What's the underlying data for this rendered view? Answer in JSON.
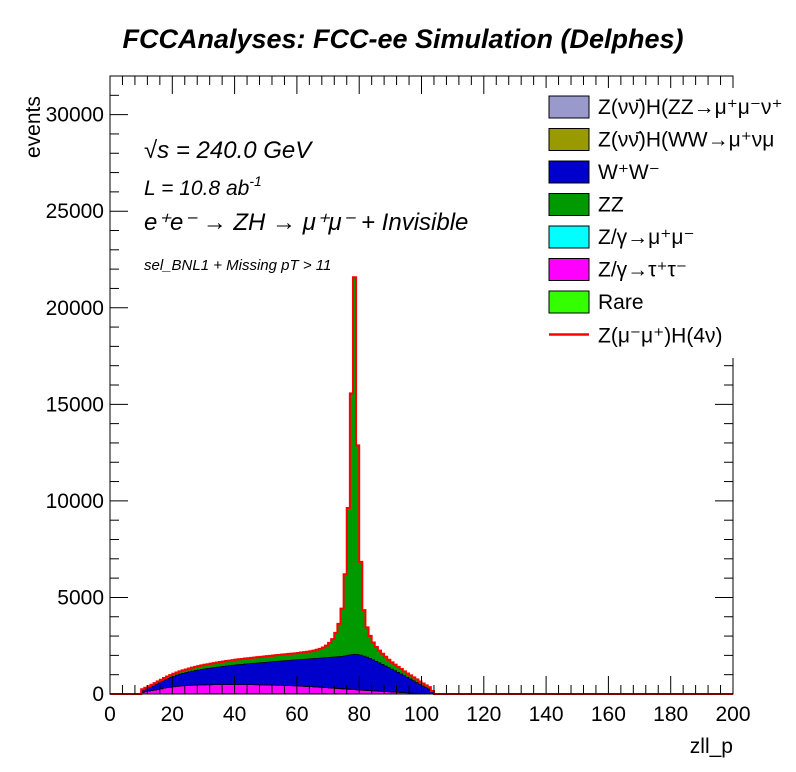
{
  "chart_data": {
    "type": "bar",
    "stacked": true,
    "histogram": true,
    "title": "FCCAnalyses: FCC-ee Simulation (Delphes)",
    "xlabel": "zll_p",
    "ylabel": "events",
    "xlim": [
      0,
      200
    ],
    "ylim": [
      0,
      32000
    ],
    "x_ticks": [
      0,
      20,
      40,
      60,
      80,
      100,
      120,
      140,
      160,
      180,
      200
    ],
    "y_ticks": [
      0,
      5000,
      10000,
      15000,
      20000,
      25000,
      30000
    ],
    "y_tick_labels": [
      "0",
      "5000",
      "10000",
      "15000",
      "20000",
      "25000",
      "30000"
    ],
    "x_tick_labels": [
      "0",
      "20",
      "40",
      "60",
      "80",
      "100",
      "120",
      "140",
      "160",
      "180",
      "200"
    ],
    "bin_width": 1,
    "grid": false,
    "legend_position": "top-right",
    "annotations": {
      "energy_prefix": "√",
      "energy_rest": "s = 240.0 GeV",
      "lumi_main": "L = 10.8 ab",
      "lumi_sup": "-1",
      "process": "e⁺e⁻ → ZH → μ⁺μ⁻ + Invisible",
      "selection": "sel_BNL1 + Missing pT > 11"
    },
    "series": [
      {
        "name": "Z(νν̄)H(ZZ→μ⁺μ⁻ν⁺ν⁻)",
        "label": "Z(νν̄)H(ZZ→μ⁺μ⁻ν⁺",
        "color": "#9999cc",
        "points": []
      },
      {
        "name": "Z(νν̄)H(WW→μ⁺νμ⁻ν)",
        "label": "Z(νν̄)H(WW→μ⁺νμ",
        "color": "#999900",
        "points": []
      },
      {
        "name": "Rare",
        "label": "Rare",
        "color": "#33ff00",
        "points": [
          [
            10,
            8
          ],
          [
            20,
            15
          ],
          [
            30,
            20
          ],
          [
            40,
            25
          ],
          [
            50,
            25
          ],
          [
            60,
            25
          ],
          [
            70,
            20
          ],
          [
            80,
            15
          ],
          [
            90,
            10
          ],
          [
            100,
            5
          ]
        ]
      },
      {
        "name": "Z/γ→τ⁺τ⁻",
        "label": "Z/γ→τ⁺τ⁻",
        "color": "#ff00ff",
        "points": [
          [
            10,
            60
          ],
          [
            14,
            180
          ],
          [
            18,
            300
          ],
          [
            22,
            390
          ],
          [
            26,
            430
          ],
          [
            30,
            450
          ],
          [
            35,
            460
          ],
          [
            40,
            460
          ],
          [
            45,
            455
          ],
          [
            50,
            440
          ],
          [
            55,
            420
          ],
          [
            60,
            390
          ],
          [
            65,
            350
          ],
          [
            70,
            300
          ],
          [
            75,
            240
          ],
          [
            80,
            190
          ],
          [
            85,
            140
          ],
          [
            90,
            95
          ],
          [
            95,
            55
          ],
          [
            100,
            25
          ],
          [
            104,
            0
          ]
        ]
      },
      {
        "name": "Z/γ→μ⁺μ⁻",
        "label": "Z/γ→μ⁺μ⁻",
        "color": "#00ffff",
        "points": [
          [
            10,
            2
          ],
          [
            30,
            5
          ],
          [
            50,
            8
          ],
          [
            70,
            12
          ],
          [
            78,
            30
          ],
          [
            80,
            20
          ],
          [
            90,
            8
          ],
          [
            100,
            3
          ]
        ]
      },
      {
        "name": "W⁺W⁻",
        "label": "W⁺W⁻",
        "color": "#0000cc",
        "points": [
          [
            10,
            100
          ],
          [
            14,
            250
          ],
          [
            18,
            450
          ],
          [
            22,
            600
          ],
          [
            26,
            720
          ],
          [
            30,
            820
          ],
          [
            35,
            920
          ],
          [
            40,
            1010
          ],
          [
            45,
            1090
          ],
          [
            50,
            1170
          ],
          [
            55,
            1260
          ],
          [
            60,
            1350
          ],
          [
            65,
            1450
          ],
          [
            70,
            1560
          ],
          [
            75,
            1680
          ],
          [
            78,
            1800
          ],
          [
            80,
            1820
          ],
          [
            83,
            1700
          ],
          [
            86,
            1500
          ],
          [
            90,
            1220
          ],
          [
            94,
            920
          ],
          [
            98,
            600
          ],
          [
            100,
            430
          ],
          [
            103,
            220
          ],
          [
            104,
            0
          ]
        ]
      },
      {
        "name": "ZZ",
        "label": "ZZ",
        "color": "#009900",
        "points": [
          [
            10,
            40
          ],
          [
            20,
            120
          ],
          [
            30,
            200
          ],
          [
            40,
            260
          ],
          [
            50,
            300
          ],
          [
            60,
            330
          ],
          [
            65,
            380
          ],
          [
            68,
            480
          ],
          [
            70,
            650
          ],
          [
            72,
            1000
          ],
          [
            74,
            1900
          ],
          [
            75,
            3000
          ],
          [
            76,
            5400
          ],
          [
            77,
            9800
          ],
          [
            77.5,
            13500
          ],
          [
            78,
            16700
          ],
          [
            78.5,
            19500
          ],
          [
            79,
            15000
          ],
          [
            80,
            6600
          ],
          [
            81,
            3000
          ],
          [
            82,
            1700
          ],
          [
            84,
            950
          ],
          [
            86,
            650
          ],
          [
            90,
            350
          ],
          [
            95,
            200
          ],
          [
            100,
            130
          ],
          [
            103,
            80
          ],
          [
            104,
            0
          ]
        ]
      }
    ],
    "signal": {
      "name": "Z(μ⁻μ⁺)H(4ν)",
      "label": "Z(μ⁻μ⁺)H(4ν)",
      "color": "#ff0000",
      "points": [
        [
          0,
          0
        ],
        [
          10,
          0
        ],
        [
          20,
          4
        ],
        [
          40,
          6
        ],
        [
          60,
          8
        ],
        [
          70,
          12
        ],
        [
          75,
          20
        ],
        [
          78,
          30
        ],
        [
          80,
          25
        ],
        [
          90,
          10
        ],
        [
          100,
          3
        ],
        [
          104,
          0
        ],
        [
          200,
          0
        ]
      ]
    }
  }
}
